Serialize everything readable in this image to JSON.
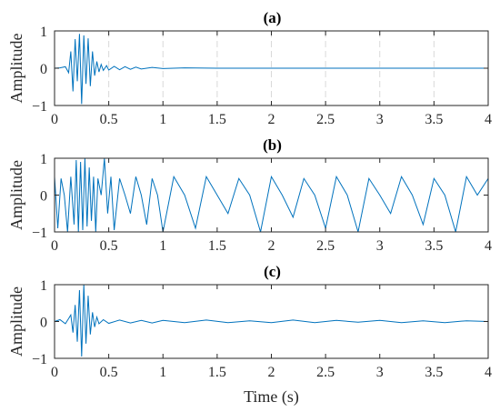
{
  "chart_data": [
    {
      "type": "line",
      "title": "(a)",
      "xlabel": "",
      "ylabel": "Amplitude",
      "xlim": [
        0,
        4
      ],
      "ylim": [
        -1,
        1
      ],
      "xticks": [
        "0",
        "0.5",
        "1",
        "1.5",
        "2",
        "2.5",
        "3",
        "3.5",
        "4"
      ],
      "yticks": [
        "-1",
        "0",
        "1"
      ],
      "grid": "vertical-dashed",
      "color": "#0072BD",
      "x": [
        0.0,
        0.05,
        0.1,
        0.13,
        0.15,
        0.17,
        0.19,
        0.21,
        0.23,
        0.25,
        0.27,
        0.29,
        0.31,
        0.33,
        0.35,
        0.37,
        0.39,
        0.41,
        0.43,
        0.45,
        0.48,
        0.5,
        0.55,
        0.6,
        0.65,
        0.7,
        0.75,
        0.8,
        0.9,
        1.0,
        1.2,
        1.5,
        2.0,
        3.0,
        4.0
      ],
      "values": [
        0.0,
        0.01,
        0.04,
        -0.12,
        0.45,
        -0.62,
        0.78,
        -0.35,
        0.92,
        -0.96,
        0.88,
        -0.42,
        0.8,
        -0.48,
        0.45,
        -0.2,
        0.18,
        -0.1,
        0.1,
        -0.06,
        0.07,
        -0.05,
        0.05,
        -0.04,
        0.04,
        -0.03,
        0.03,
        -0.02,
        0.02,
        -0.01,
        0.01,
        0.0,
        0.0,
        0.0,
        0.0
      ]
    },
    {
      "type": "line",
      "title": "(b)",
      "xlabel": "",
      "ylabel": "Amplitude",
      "xlim": [
        0,
        4
      ],
      "ylim": [
        -1,
        1
      ],
      "xticks": [
        "0",
        "0.5",
        "1",
        "1.5",
        "2",
        "2.5",
        "3",
        "3.5",
        "4"
      ],
      "yticks": [
        "-1",
        "0",
        "1"
      ],
      "grid": "none",
      "color": "#0072BD",
      "x": [
        0.0,
        0.03,
        0.06,
        0.09,
        0.12,
        0.15,
        0.18,
        0.2,
        0.22,
        0.24,
        0.26,
        0.28,
        0.3,
        0.32,
        0.34,
        0.36,
        0.38,
        0.4,
        0.43,
        0.46,
        0.49,
        0.52,
        0.55,
        0.6,
        0.65,
        0.7,
        0.75,
        0.8,
        0.85,
        0.9,
        0.95,
        1.0,
        1.1,
        1.2,
        1.3,
        1.4,
        1.5,
        1.6,
        1.7,
        1.8,
        1.9,
        2.0,
        2.1,
        2.2,
        2.3,
        2.4,
        2.5,
        2.6,
        2.7,
        2.8,
        2.9,
        3.0,
        3.1,
        3.2,
        3.3,
        3.4,
        3.5,
        3.6,
        3.7,
        3.8,
        3.9,
        4.0
      ],
      "values": [
        0.5,
        -0.9,
        0.45,
        0.0,
        -1.0,
        0.5,
        -0.8,
        0.95,
        -1.0,
        0.9,
        -0.95,
        1.0,
        -0.85,
        0.75,
        -0.7,
        0.5,
        -1.0,
        0.45,
        0.0,
        1.0,
        -0.5,
        0.5,
        -0.95,
        0.45,
        0.0,
        -0.5,
        0.5,
        0.0,
        -0.8,
        0.45,
        0.0,
        -1.0,
        0.5,
        0.0,
        -0.9,
        0.5,
        0.0,
        -0.5,
        0.45,
        0.0,
        -1.0,
        0.5,
        0.0,
        -0.6,
        0.45,
        0.0,
        -0.9,
        0.5,
        0.0,
        -1.0,
        0.45,
        0.0,
        -0.5,
        0.5,
        0.0,
        -0.8,
        0.45,
        0.0,
        -1.0,
        0.5,
        0.0,
        0.45
      ]
    },
    {
      "type": "line",
      "title": "(c)",
      "xlabel": "Time (s)",
      "ylabel": "Amplitude",
      "xlim": [
        0,
        4
      ],
      "ylim": [
        -1,
        1
      ],
      "xticks": [
        "0",
        "0.5",
        "1",
        "1.5",
        "2",
        "2.5",
        "3",
        "3.5",
        "4"
      ],
      "yticks": [
        "-1",
        "0",
        "1"
      ],
      "grid": "none",
      "color": "#0072BD",
      "x": [
        0.0,
        0.05,
        0.1,
        0.13,
        0.15,
        0.17,
        0.19,
        0.21,
        0.23,
        0.25,
        0.27,
        0.29,
        0.31,
        0.33,
        0.35,
        0.37,
        0.39,
        0.41,
        0.45,
        0.5,
        0.6,
        0.7,
        0.8,
        0.9,
        1.0,
        1.2,
        1.4,
        1.6,
        1.8,
        2.0,
        2.2,
        2.4,
        2.6,
        2.8,
        3.0,
        3.2,
        3.4,
        3.6,
        3.8,
        4.0
      ],
      "values": [
        0.0,
        0.05,
        -0.06,
        0.08,
        0.18,
        -0.3,
        0.45,
        -0.55,
        0.85,
        -0.95,
        1.0,
        -0.6,
        0.7,
        -0.35,
        0.25,
        -0.15,
        0.12,
        -0.06,
        0.05,
        -0.05,
        0.04,
        -0.04,
        0.03,
        -0.04,
        0.03,
        -0.03,
        0.04,
        -0.03,
        0.02,
        -0.03,
        0.04,
        -0.03,
        0.03,
        -0.02,
        0.03,
        -0.03,
        0.02,
        -0.03,
        0.02,
        0.0
      ]
    }
  ]
}
